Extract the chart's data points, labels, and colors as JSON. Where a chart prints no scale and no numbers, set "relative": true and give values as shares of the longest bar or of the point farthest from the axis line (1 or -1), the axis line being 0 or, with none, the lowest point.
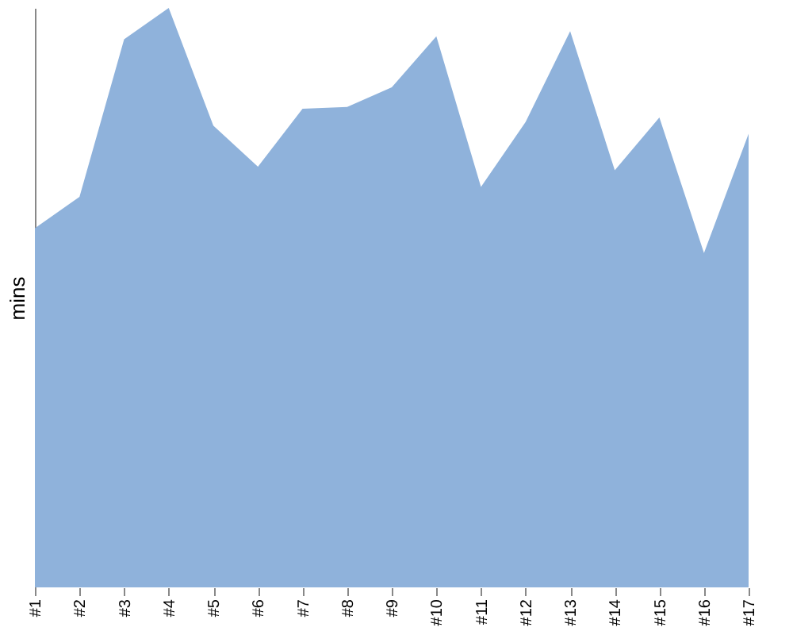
{
  "chart_data": {
    "type": "area",
    "ylabel": "mins",
    "relative": true,
    "categories": [
      "#1",
      "#2",
      "#3",
      "#4",
      "#5",
      "#6",
      "#7",
      "#8",
      "#9",
      "#10",
      "#11",
      "#12",
      "#13",
      "#14",
      "#15",
      "#16",
      "#17"
    ],
    "series": [
      {
        "color": "#8fb2db",
        "values": [
          0.62,
          0.674,
          0.946,
          1,
          0.797,
          0.726,
          0.826,
          0.829,
          0.863,
          0.951,
          0.691,
          0.803,
          0.96,
          0.72,
          0.811,
          0.577,
          0.783
        ]
      }
    ]
  }
}
